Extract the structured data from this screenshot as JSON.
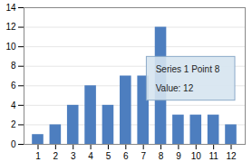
{
  "chart_data": {
    "type": "bar",
    "x": [
      1,
      2,
      3,
      4,
      5,
      6,
      7,
      8,
      9,
      10,
      11,
      12
    ],
    "values": [
      1,
      2,
      4,
      6,
      4,
      7,
      7,
      12,
      3,
      3,
      3,
      2
    ],
    "color": "#4D7EBF",
    "xlim": [
      0.2,
      12.8
    ],
    "xticks": [
      1,
      2,
      3,
      4,
      5,
      6,
      7,
      8,
      9,
      10,
      11,
      12
    ],
    "ylim": [
      0,
      14
    ],
    "yticks": [
      0,
      2,
      4,
      6,
      8,
      10,
      12,
      14
    ],
    "grid": true,
    "annotations": [
      "Series 1 Point 8",
      "Value: 12"
    ]
  }
}
